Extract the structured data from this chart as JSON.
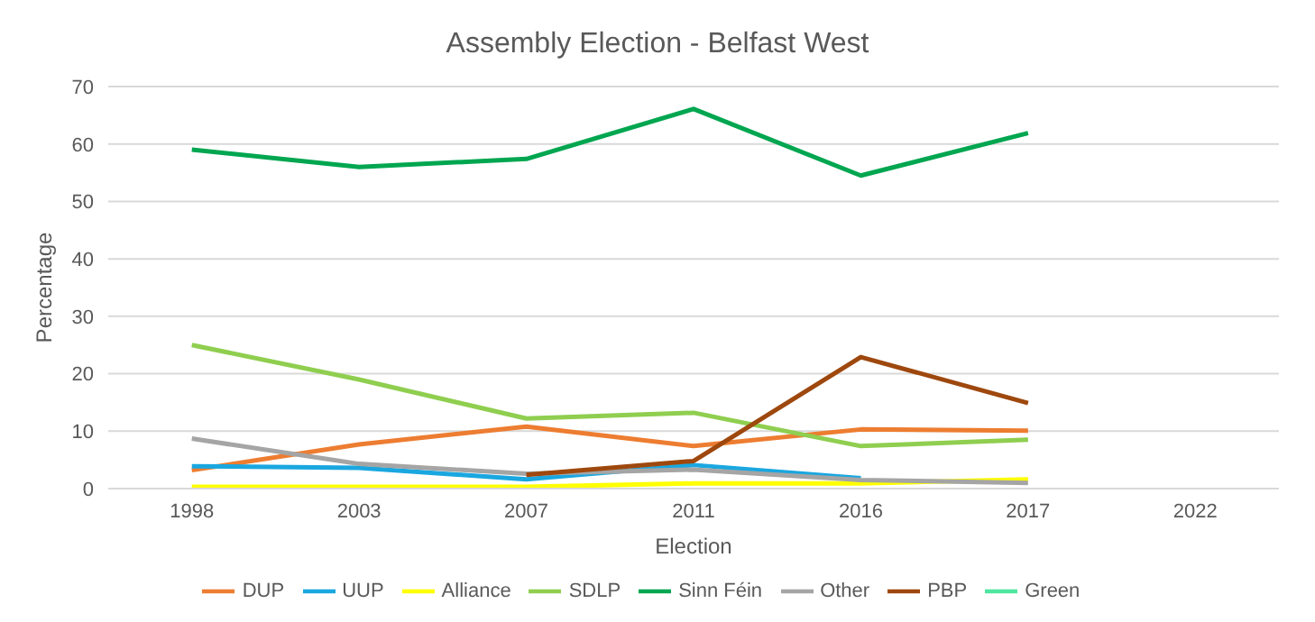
{
  "chart_data": {
    "type": "line",
    "title": "Assembly Election - Belfast West",
    "xlabel": "Election",
    "ylabel": "Percentage",
    "categories": [
      "1998",
      "2003",
      "2007",
      "2011",
      "2016",
      "2017",
      "2022"
    ],
    "series": [
      {
        "name": "DUP",
        "color": "#ed7d31",
        "values": [
          3.2,
          7.7,
          10.8,
          7.4,
          10.3,
          10.1,
          null
        ]
      },
      {
        "name": "UUP",
        "color": "#1aa7e0",
        "values": [
          3.9,
          3.6,
          1.6,
          4.1,
          1.8,
          null,
          null
        ]
      },
      {
        "name": "Alliance",
        "color": "#ffff00",
        "values": [
          0.3,
          0.3,
          0.3,
          0.9,
          0.9,
          1.6,
          null
        ]
      },
      {
        "name": "SDLP",
        "color": "#8fce4f",
        "values": [
          25,
          19,
          12.2,
          13.2,
          7.4,
          8.5,
          null
        ]
      },
      {
        "name": "Sinn Féin",
        "color": "#00a650",
        "values": [
          59,
          56,
          57.4,
          66.1,
          54.5,
          61.9,
          null
        ]
      },
      {
        "name": "Other",
        "color": "#a5a5a5",
        "values": [
          8.7,
          4.3,
          2.6,
          3.3,
          1.5,
          1.0,
          null
        ]
      },
      {
        "name": "PBP",
        "color": "#9e480e",
        "values": [
          null,
          null,
          2.4,
          4.8,
          22.9,
          14.9,
          null
        ]
      },
      {
        "name": "Green",
        "color": "#4ee6a0",
        "values": [
          null,
          null,
          null,
          null,
          null,
          null,
          null
        ]
      }
    ],
    "ylim": [
      0,
      70
    ],
    "yticks": [
      0,
      10,
      20,
      30,
      40,
      50,
      60,
      70
    ],
    "grid": "y",
    "legend": "bottom",
    "marker": "none",
    "line_style": "solid"
  }
}
